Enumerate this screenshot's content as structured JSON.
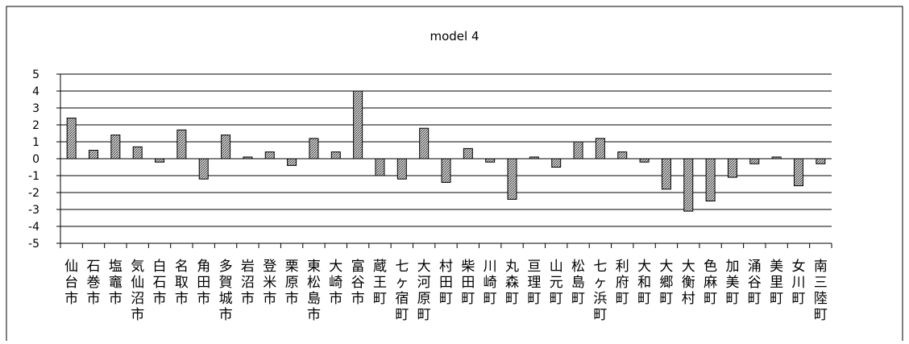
{
  "chart_data": {
    "type": "bar",
    "title": "model 4",
    "xlabel": "",
    "ylabel": "",
    "ylim": [
      -5,
      5
    ],
    "yticks": [
      5,
      4,
      3,
      2,
      1,
      0,
      -1,
      -2,
      -3,
      -4,
      -5
    ],
    "grid": true,
    "legend": "none",
    "bar_color": "#9a9a9a",
    "categories": [
      "仙台市",
      "石巻市",
      "塩竈市",
      "気仙沼市",
      "白石市",
      "名取市",
      "角田市",
      "多賀城市",
      "岩沼市",
      "登米市",
      "栗原市",
      "東松島市",
      "大崎市",
      "富谷市",
      "蔵王町",
      "七ヶ宿町",
      "大河原町",
      "村田町",
      "柴田町",
      "川崎町",
      "丸森町",
      "亘理町",
      "山元町",
      "松島町",
      "七ヶ浜町",
      "利府町",
      "大和町",
      "大郷町",
      "大衡村",
      "色麻町",
      "加美町",
      "涌谷町",
      "美里町",
      "女川町",
      "南三陸町"
    ],
    "values": [
      2.4,
      0.5,
      1.4,
      0.7,
      -0.2,
      1.7,
      -1.2,
      1.4,
      0.1,
      0.4,
      -0.4,
      1.2,
      0.4,
      4.0,
      -1.0,
      -1.2,
      1.8,
      -1.4,
      0.6,
      -0.2,
      -2.4,
      0.1,
      -0.5,
      1.0,
      1.2,
      0.4,
      -0.2,
      -1.8,
      -3.1,
      -2.5,
      -1.1,
      -0.3,
      0.1,
      -1.6,
      -0.3
    ]
  }
}
